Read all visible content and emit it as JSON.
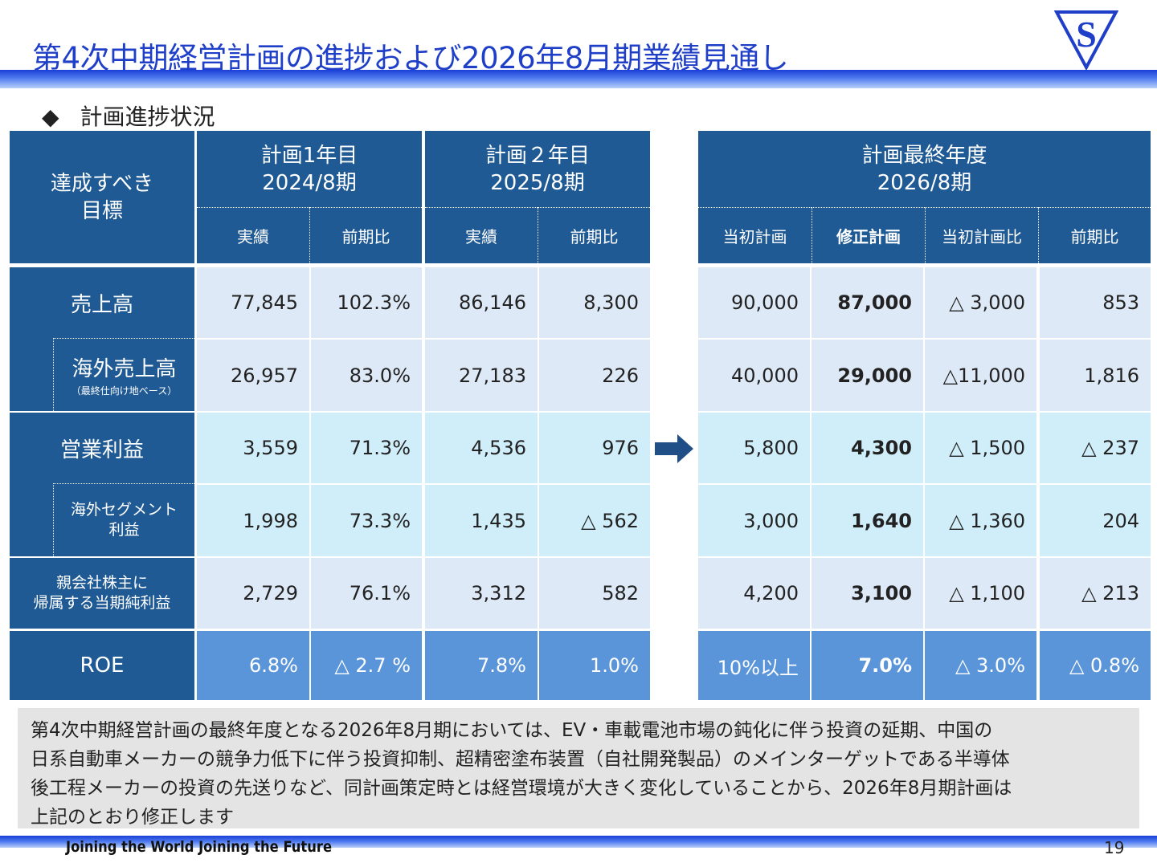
{
  "title": "第4次中期経営計画の進捗および2026年8月期業績見通し",
  "logo_letter": "S",
  "section_marker": "◆",
  "section_title": "計画進捗状況",
  "header": {
    "target": [
      "達成すべき",
      "目標"
    ],
    "year1": [
      "計画1年目",
      "2024/8期"
    ],
    "year2": [
      "計画２年目",
      "2025/8期"
    ],
    "final": [
      "計画最終年度",
      "2026/8期"
    ],
    "col_actual": "実績",
    "col_yoy": "前期比",
    "col_initial": "当初計画",
    "col_revised": "修正計画",
    "col_vs_initial": "当初計画比"
  },
  "rows": [
    {
      "label": "売上高",
      "y1_actual": "77,845",
      "y1_ratio": "102.3%",
      "y2_actual": "86,146",
      "y2_yoy": "8,300",
      "initial": "90,000",
      "revised": "87,000",
      "vs_initial": "△  3,000",
      "yoy": "853"
    },
    {
      "label": "海外売上高",
      "note": "（最終仕向け地ベース）",
      "y1_actual": "26,957",
      "y1_ratio": "83.0%",
      "y2_actual": "27,183",
      "y2_yoy": "226",
      "initial": "40,000",
      "revised": "29,000",
      "vs_initial": "△11,000",
      "yoy": "1,816"
    },
    {
      "label": "営業利益",
      "y1_actual": "3,559",
      "y1_ratio": "71.3%",
      "y2_actual": "4,536",
      "y2_yoy": "976",
      "initial": "5,800",
      "revised": "4,300",
      "vs_initial": "△  1,500",
      "yoy": "△ 237"
    },
    {
      "label_lines": [
        "海外セグメント",
        "利益"
      ],
      "y1_actual": "1,998",
      "y1_ratio": "73.3%",
      "y2_actual": "1,435",
      "y2_yoy": "△ 562",
      "initial": "3,000",
      "revised": "1,640",
      "vs_initial": "△  1,360",
      "yoy": "204"
    },
    {
      "label_lines": [
        "親会社株主に",
        "帰属する当期純利益"
      ],
      "y1_actual": "2,729",
      "y1_ratio": "76.1%",
      "y2_actual": "3,312",
      "y2_yoy": "582",
      "initial": "4,200",
      "revised": "3,100",
      "vs_initial": "△  1,100",
      "yoy": "△ 213"
    },
    {
      "label": "ROE",
      "y1_actual": "6.8%",
      "y1_ratio": "△ 2.7 %",
      "y2_actual": "7.8%",
      "y2_yoy": "1.0%",
      "initial": "10%以上",
      "revised": "7.0%",
      "vs_initial": "△ 3.0%",
      "yoy": "△ 0.8%"
    }
  ],
  "note_lines": [
    "第4次中期経営計画の最終年度となる2026年8月期においては、EV・車載電池市場の鈍化に伴う投資の延期、中国の",
    "日系自動車メーカーの競争力低下に伴う投資抑制、超精密塗布装置（自社開発製品）のメインターゲットである半導体",
    "後工程メーカーの投資の先送りなど、同計画策定時とは経営環境が大きく変化していることから、2026年8月期計画は",
    "上記のとおり修正します"
  ],
  "footer": "Joining the World  Joining the Future",
  "page_number": "19",
  "colors": {
    "header_blue": "#1f5a94",
    "pale_cell": "#dde9f6",
    "cyan_cell": "#cfeefa",
    "roe_cell": "#5b95d9",
    "title_blue": "#1f3fc8"
  },
  "icons": [
    "logo-s-triangle",
    "diamond-bullet",
    "right-arrow-icon"
  ]
}
